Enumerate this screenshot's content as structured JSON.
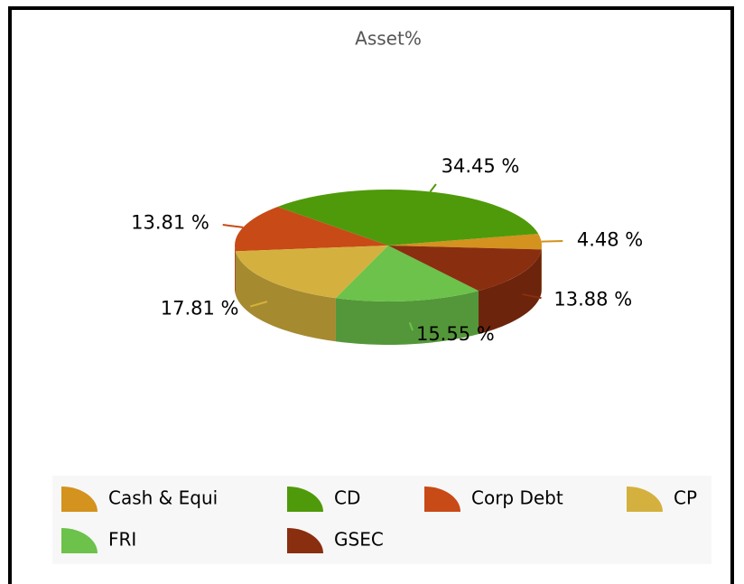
{
  "chart_data": {
    "type": "pie",
    "title": "Asset%",
    "categories": [
      "Cash & Equi",
      "CD",
      "Corp Debt",
      "CP",
      "FRI",
      "GSEC"
    ],
    "values": [
      4.48,
      34.45,
      13.81,
      17.81,
      15.55,
      13.88
    ],
    "value_labels": [
      "4.48 %",
      "34.45 %",
      "13.81 %",
      "17.81 %",
      "15.55 %",
      "13.88 %"
    ],
    "colors": [
      "#d4921e",
      "#4f9a0a",
      "#c84a16",
      "#d4b13e",
      "#6cc24a",
      "#8a2e10"
    ],
    "legend": "bottom"
  }
}
